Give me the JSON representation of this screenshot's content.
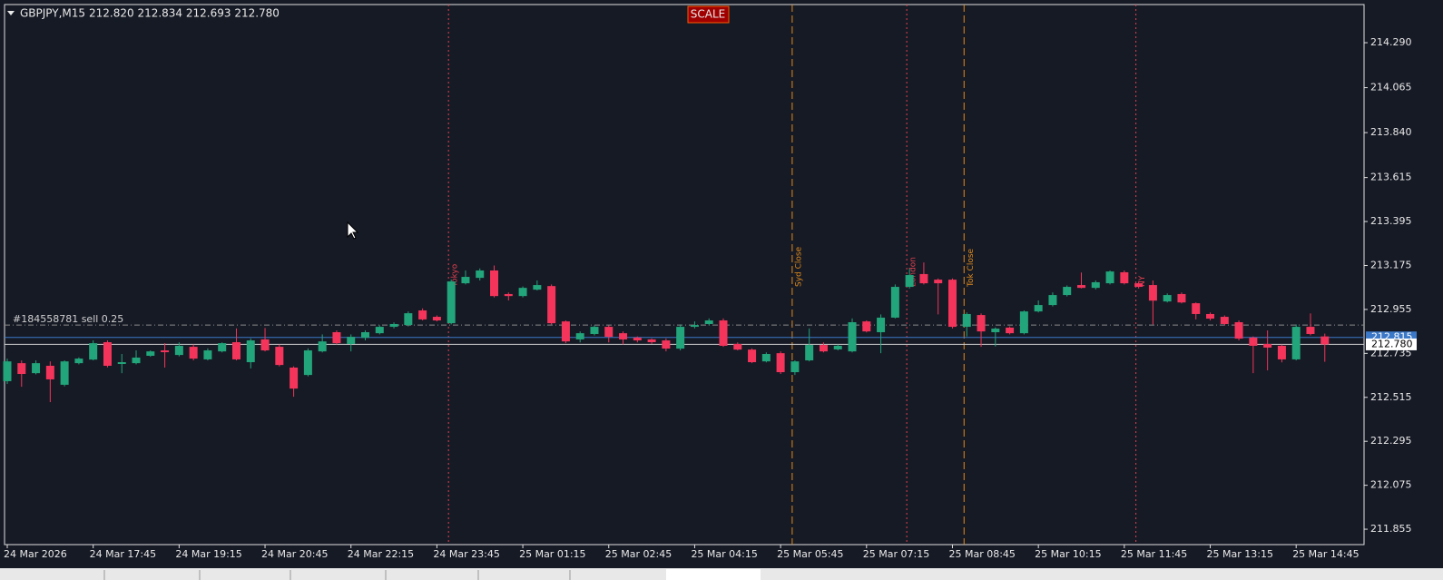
{
  "chart_data": {
    "type": "candlestick",
    "title": "GBPJPY,M15",
    "subtitle": "212.820 212.834 212.693 212.780",
    "button": "SCALE",
    "up_color": "#22a57a",
    "down_color": "#f4345a",
    "categories": [
      "24 Mar 2026",
      null,
      null,
      null,
      null,
      null,
      "24 Mar 17:45",
      null,
      null,
      null,
      null,
      null,
      "24 Mar 19:15",
      null,
      null,
      null,
      null,
      null,
      "24 Mar 20:45",
      null,
      null,
      null,
      null,
      null,
      "24 Mar 22:15",
      null,
      null,
      null,
      null,
      null,
      "24 Mar 23:45",
      null,
      null,
      null,
      null,
      null,
      "25 Mar 01:15",
      null,
      null,
      null,
      null,
      null,
      "25 Mar 02:45",
      null,
      null,
      null,
      null,
      null,
      "25 Mar 04:15",
      null,
      null,
      null,
      null,
      null,
      "25 Mar 05:45",
      null,
      null,
      null,
      null,
      null,
      "25 Mar 07:15",
      null,
      null,
      null,
      null,
      null,
      "25 Mar 08:45",
      null,
      null,
      null,
      null,
      null,
      "25 Mar 10:15",
      null,
      null,
      null,
      null,
      null,
      "25 Mar 11:45",
      null,
      null,
      null,
      null,
      null,
      "25 Mar 13:15",
      null,
      null,
      null,
      null,
      null,
      "25 Mar 14:45",
      null,
      null
    ],
    "open": [
      212.596,
      212.686,
      212.636,
      212.673,
      212.578,
      212.686,
      212.704,
      212.791,
      212.682,
      212.686,
      212.723,
      212.75,
      212.727,
      212.768,
      212.705,
      212.745,
      212.791,
      212.691,
      212.805,
      212.768,
      212.664,
      212.627,
      212.745,
      212.841,
      212.782,
      212.813,
      212.836,
      212.868,
      212.877,
      212.95,
      212.918,
      212.886,
      213.086,
      213.113,
      213.15,
      213.032,
      213.022,
      213.054,
      213.072,
      212.895,
      212.805,
      212.832,
      212.868,
      212.836,
      212.814,
      212.805,
      212.8,
      212.759,
      212.868,
      212.882,
      212.9,
      212.782,
      212.754,
      212.695,
      212.736,
      212.641,
      212.7,
      212.777,
      212.755,
      212.745,
      212.895,
      212.841,
      212.914,
      213.068,
      213.132,
      213.104,
      213.104,
      212.868,
      212.927,
      212.841,
      212.864,
      212.836,
      212.945,
      212.977,
      213.027,
      213.077,
      213.063,
      213.086,
      213.141,
      213.086,
      213.077,
      212.995,
      213.032,
      212.986,
      212.932,
      212.918,
      212.891,
      212.814,
      212.782,
      212.773,
      212.705,
      212.868,
      212.82
    ],
    "high": [
      212.709,
      212.7,
      212.7,
      212.695,
      212.7,
      212.715,
      212.8,
      212.8,
      212.732,
      212.75,
      212.75,
      212.786,
      212.79,
      212.78,
      212.76,
      212.79,
      212.86,
      212.81,
      212.862,
      212.78,
      212.67,
      212.76,
      212.83,
      212.85,
      212.83,
      212.85,
      212.875,
      212.89,
      212.945,
      212.96,
      212.925,
      213.105,
      213.15,
      213.16,
      213.175,
      213.04,
      213.07,
      213.1,
      213.08,
      212.9,
      212.845,
      212.875,
      212.875,
      212.845,
      212.82,
      212.81,
      212.81,
      212.88,
      212.895,
      212.91,
      212.91,
      212.79,
      212.76,
      212.74,
      212.745,
      212.7,
      212.86,
      212.79,
      212.78,
      212.91,
      212.9,
      212.93,
      213.08,
      213.16,
      213.19,
      213.11,
      213.11,
      212.94,
      212.935,
      212.865,
      212.87,
      212.95,
      213.0,
      213.04,
      213.075,
      213.14,
      213.1,
      213.15,
      213.15,
      213.095,
      213.1,
      213.035,
      213.04,
      212.99,
      212.94,
      212.925,
      212.9,
      212.82,
      212.85,
      212.78,
      212.88,
      212.935,
      212.834
    ],
    "low": [
      212.582,
      212.568,
      212.63,
      212.491,
      212.57,
      212.68,
      212.7,
      212.665,
      212.636,
      212.68,
      212.718,
      212.664,
      212.72,
      212.7,
      212.7,
      212.74,
      212.7,
      212.66,
      212.745,
      212.67,
      212.518,
      212.62,
      212.74,
      212.78,
      212.745,
      212.8,
      212.83,
      212.86,
      212.87,
      212.9,
      212.895,
      212.88,
      213.08,
      213.1,
      213.015,
      213.0,
      213.015,
      213.05,
      212.88,
      212.786,
      212.79,
      212.825,
      212.79,
      212.78,
      212.79,
      212.782,
      212.745,
      212.75,
      212.86,
      212.875,
      212.768,
      212.75,
      212.686,
      212.69,
      212.632,
      212.627,
      212.695,
      212.74,
      212.75,
      212.74,
      212.84,
      212.736,
      212.91,
      213.06,
      213.08,
      212.93,
      212.86,
      212.82,
      212.768,
      212.77,
      212.83,
      212.83,
      212.94,
      212.97,
      213.02,
      213.06,
      213.055,
      213.08,
      213.08,
      213.06,
      212.88,
      212.99,
      212.985,
      212.905,
      212.9,
      212.875,
      212.8,
      212.636,
      212.65,
      212.69,
      212.7,
      212.825,
      212.693
    ],
    "close": [
      212.695,
      212.632,
      212.686,
      212.605,
      212.695,
      212.709,
      212.786,
      212.673,
      212.691,
      212.714,
      212.745,
      212.741,
      212.773,
      212.709,
      212.75,
      212.786,
      212.705,
      212.8,
      212.75,
      212.677,
      212.559,
      212.75,
      212.795,
      212.786,
      212.818,
      212.841,
      212.868,
      212.882,
      212.936,
      212.905,
      212.9,
      213.095,
      213.118,
      213.15,
      213.022,
      213.022,
      213.063,
      213.077,
      212.886,
      212.795,
      212.836,
      212.868,
      212.818,
      212.805,
      212.8,
      212.791,
      212.759,
      212.868,
      212.877,
      212.9,
      212.773,
      212.754,
      212.691,
      212.732,
      212.641,
      212.695,
      212.777,
      212.745,
      212.773,
      212.891,
      212.845,
      212.914,
      213.068,
      213.127,
      213.086,
      213.086,
      212.868,
      212.932,
      212.845,
      212.859,
      212.836,
      212.945,
      212.977,
      213.027,
      213.068,
      213.063,
      213.091,
      213.145,
      213.086,
      213.068,
      212.999,
      213.027,
      212.99,
      212.932,
      212.909,
      212.882,
      212.809,
      212.773,
      212.764,
      212.705,
      212.868,
      212.832,
      212.78
    ],
    "ylim": [
      211.778,
      214.481
    ],
    "yticks": [
      {
        "value": 214.29,
        "label": "214.290"
      },
      {
        "value": 214.065,
        "label": "214.065"
      },
      {
        "value": 213.84,
        "label": "213.840"
      },
      {
        "value": 213.615,
        "label": "213.615"
      },
      {
        "value": 213.395,
        "label": "213.395"
      },
      {
        "value": 213.175,
        "label": "213.175"
      },
      {
        "value": 212.955,
        "label": "212.955"
      },
      {
        "value": 212.735,
        "label": "212.735"
      },
      {
        "value": 212.515,
        "label": "212.515"
      },
      {
        "value": 212.295,
        "label": "212.295"
      },
      {
        "value": 212.075,
        "label": "212.075"
      },
      {
        "value": 211.855,
        "label": "211.855"
      }
    ],
    "price_lines": [
      {
        "value": 212.815,
        "label": "212.815",
        "color": "#3b78c8"
      },
      {
        "value": 212.78,
        "label": "212.780",
        "color": "#d0d0d0"
      }
    ],
    "order": {
      "label": "#184558781 sell 0.25",
      "value": 212.877
    },
    "sessions": [
      {
        "label": "Tokyo",
        "candle": 31,
        "color": "#e0404f",
        "dash": "2,3"
      },
      {
        "label": "Syd Close",
        "candle": 55,
        "color": "#e08a1a",
        "dash": "8,4"
      },
      {
        "label": "London",
        "candle": 63,
        "color": "#e0404f",
        "dash": "2,3"
      },
      {
        "label": "Tok Close",
        "candle": 67,
        "color": "#e08a1a",
        "dash": "8,4"
      },
      {
        "label": "NY",
        "candle": 79,
        "color": "#e0404f",
        "dash": "2,3"
      }
    ]
  }
}
